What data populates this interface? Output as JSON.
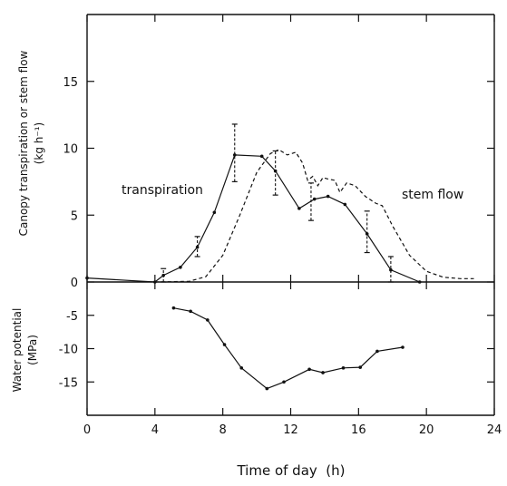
{
  "chart_data": [
    {
      "type": "line",
      "panel": "top",
      "ylabel_line1": "Canopy transpiration or stem flow",
      "ylabel_line2": "(kg h⁻¹)",
      "xlim": [
        0,
        24
      ],
      "ylim": [
        0,
        20
      ],
      "yticks": [
        0,
        5,
        10,
        15
      ],
      "annotations": [
        "transpiration",
        "stem flow"
      ],
      "series": [
        {
          "values": [
            {
              "x": 0,
              "y": 0.3
            },
            {
              "x": 4,
              "y": 0.0
            },
            {
              "x": 4.5,
              "y": 0.5
            },
            {
              "x": 5.5,
              "y": 1.1
            },
            {
              "x": 6.5,
              "y": 2.6
            },
            {
              "x": 7.5,
              "y": 5.2
            },
            {
              "x": 8.7,
              "y": 9.5
            },
            {
              "x": 10.3,
              "y": 9.4
            },
            {
              "x": 11.1,
              "y": 8.3
            },
            {
              "x": 12.5,
              "y": 5.5
            },
            {
              "x": 13.4,
              "y": 6.2
            },
            {
              "x": 14.2,
              "y": 6.4
            },
            {
              "x": 15.2,
              "y": 5.8
            },
            {
              "x": 16.5,
              "y": 3.6
            },
            {
              "x": 17.9,
              "y": 0.9
            },
            {
              "x": 19.6,
              "y": 0.0
            }
          ]
        },
        {
          "values": [
            {
              "x": 4,
              "y": 0.0
            },
            {
              "x": 6,
              "y": 0.05
            },
            {
              "x": 7,
              "y": 0.4
            },
            {
              "x": 8,
              "y": 2.0
            },
            {
              "x": 9,
              "y": 5.0
            },
            {
              "x": 10,
              "y": 8.2
            },
            {
              "x": 10.8,
              "y": 9.6
            },
            {
              "x": 11.3,
              "y": 9.9
            },
            {
              "x": 11.8,
              "y": 9.5
            },
            {
              "x": 12.3,
              "y": 9.7
            },
            {
              "x": 12.7,
              "y": 8.9
            },
            {
              "x": 13,
              "y": 7.6
            },
            {
              "x": 13.3,
              "y": 7.9
            },
            {
              "x": 13.6,
              "y": 7.2
            },
            {
              "x": 13.9,
              "y": 7.8
            },
            {
              "x": 14.2,
              "y": 7.7
            },
            {
              "x": 14.6,
              "y": 7.6
            },
            {
              "x": 14.9,
              "y": 6.7
            },
            {
              "x": 15.3,
              "y": 7.4
            },
            {
              "x": 15.8,
              "y": 7.2
            },
            {
              "x": 16.4,
              "y": 6.4
            },
            {
              "x": 17,
              "y": 5.9
            },
            {
              "x": 17.4,
              "y": 5.7
            },
            {
              "x": 18,
              "y": 4.2
            },
            {
              "x": 19,
              "y": 2.0
            },
            {
              "x": 20,
              "y": 0.8
            },
            {
              "x": 21,
              "y": 0.35
            },
            {
              "x": 22,
              "y": 0.25
            },
            {
              "x": 22.8,
              "y": 0.25
            }
          ]
        }
      ],
      "error_bars": [
        {
          "x": 4.5,
          "low": 0.0,
          "high": 1.0
        },
        {
          "x": 6.5,
          "low": 1.9,
          "high": 3.4
        },
        {
          "x": 8.7,
          "low": 7.5,
          "high": 11.8
        },
        {
          "x": 11.1,
          "low": 6.5,
          "high": 9.8
        },
        {
          "x": 13.2,
          "low": 4.6,
          "high": 7.4
        },
        {
          "x": 16.5,
          "low": 2.2,
          "high": 5.3
        },
        {
          "x": 17.9,
          "low": 0.0,
          "high": 1.9
        }
      ]
    },
    {
      "type": "line",
      "panel": "bottom",
      "ylabel_line1": "Water potential",
      "ylabel_line2": "(MPa)",
      "xlabel": "Time of day  (h)",
      "xlim": [
        0,
        24
      ],
      "ylim": [
        -20,
        0
      ],
      "xticks": [
        0,
        4,
        8,
        12,
        16,
        20,
        24
      ],
      "yticks": [
        -5,
        -10,
        -15
      ],
      "series": [
        {
          "values": [
            {
              "x": 5.1,
              "y": -3.9
            },
            {
              "x": 6.1,
              "y": -4.4
            },
            {
              "x": 7.1,
              "y": -5.7
            },
            {
              "x": 8.1,
              "y": -9.4
            },
            {
              "x": 9.1,
              "y": -12.9
            },
            {
              "x": 10.6,
              "y": -16.0
            },
            {
              "x": 11.6,
              "y": -15.0
            },
            {
              "x": 13.1,
              "y": -13.1
            },
            {
              "x": 13.9,
              "y": -13.6
            },
            {
              "x": 15.1,
              "y": -12.9
            },
            {
              "x": 16.1,
              "y": -12.8
            },
            {
              "x": 17.1,
              "y": -10.4
            },
            {
              "x": 18.6,
              "y": -9.8
            }
          ]
        }
      ]
    }
  ]
}
